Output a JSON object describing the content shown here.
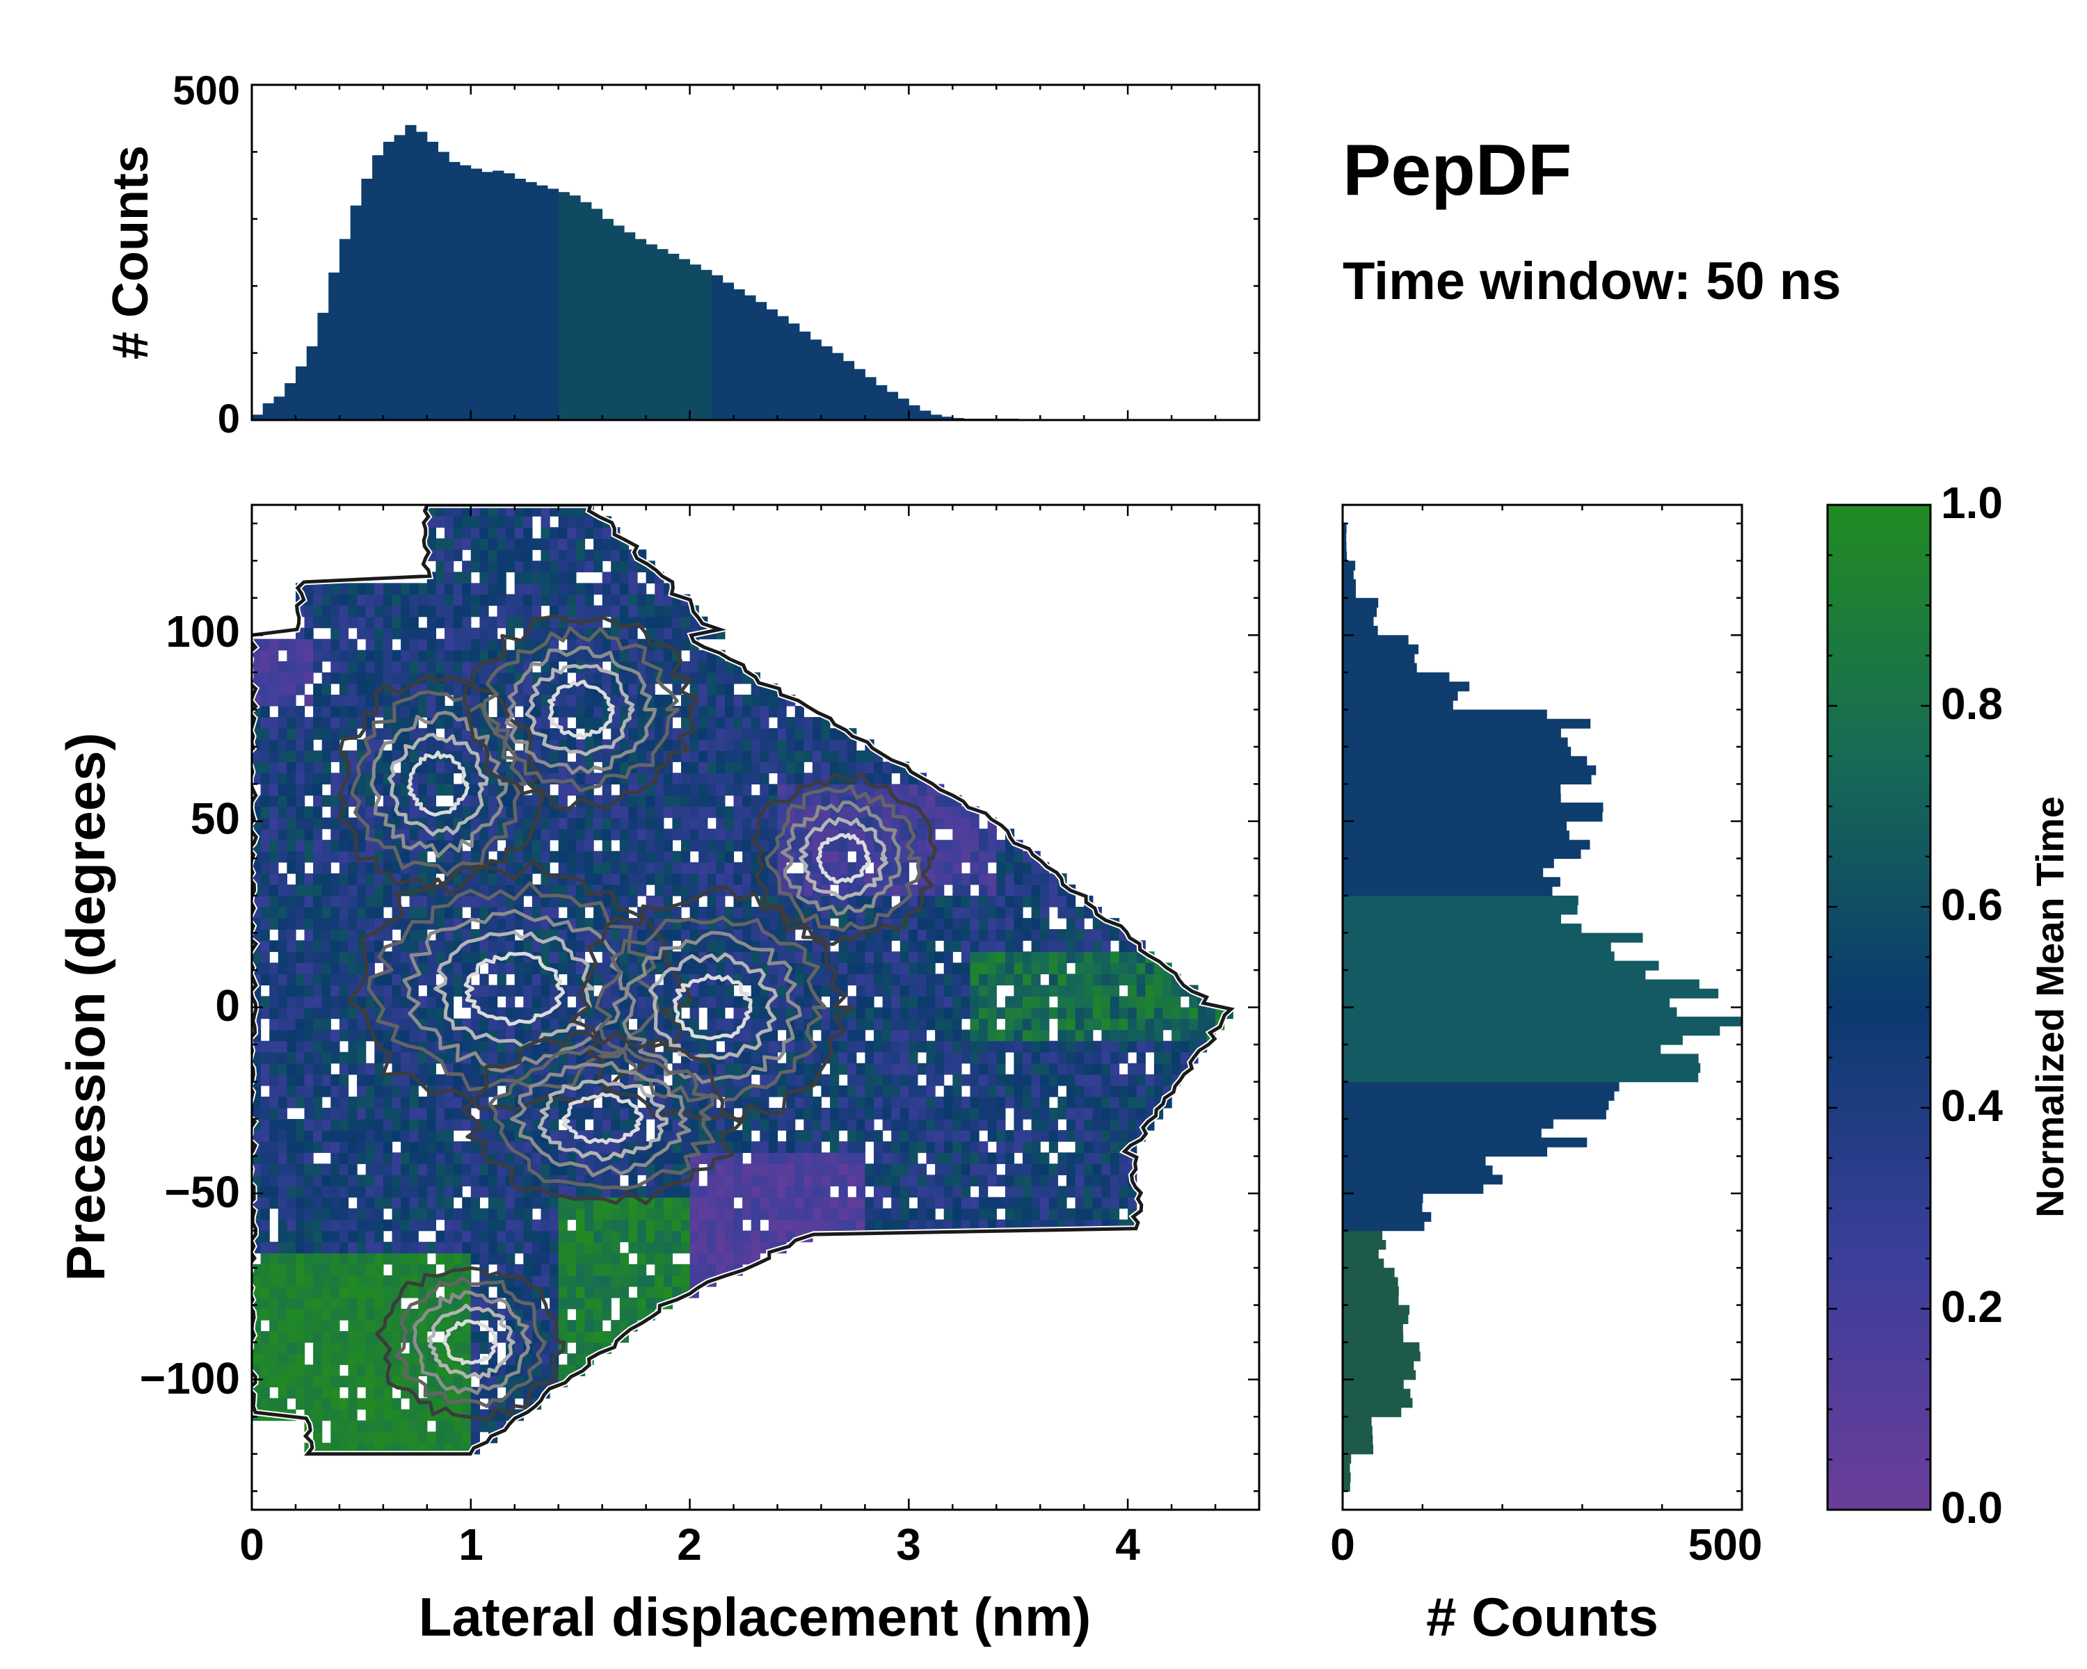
{
  "chart_data": [
    {
      "id": "top_hist",
      "type": "bar",
      "orientation": "vertical",
      "ylabel": "# Counts",
      "xlim": [
        0,
        4.6
      ],
      "ylim": [
        0,
        500
      ],
      "yticks": [
        0,
        500
      ],
      "bins_x": [
        0.025,
        0.075,
        0.125,
        0.175,
        0.225,
        0.275,
        0.325,
        0.375,
        0.425,
        0.475,
        0.525,
        0.575,
        0.625,
        0.675,
        0.725,
        0.775,
        0.825,
        0.875,
        0.925,
        0.975,
        1.025,
        1.075,
        1.125,
        1.175,
        1.225,
        1.275,
        1.325,
        1.375,
        1.425,
        1.475,
        1.525,
        1.575,
        1.625,
        1.675,
        1.725,
        1.775,
        1.825,
        1.875,
        1.925,
        1.975,
        2.025,
        2.075,
        2.125,
        2.175,
        2.225,
        2.275,
        2.325,
        2.375,
        2.425,
        2.475,
        2.525,
        2.575,
        2.625,
        2.675,
        2.725,
        2.775,
        2.825,
        2.875,
        2.925,
        2.975,
        3.025,
        3.075,
        3.125,
        3.175,
        3.225,
        3.275,
        3.325,
        3.375,
        3.425,
        3.475,
        3.525,
        3.575,
        3.625,
        3.675,
        3.725,
        3.775,
        3.825,
        3.875,
        3.925,
        3.975,
        4.025,
        4.075,
        4.125,
        4.175,
        4.225,
        4.275,
        4.325,
        4.375,
        4.425,
        4.475,
        4.525,
        4.575
      ],
      "counts": [
        8,
        25,
        35,
        55,
        80,
        110,
        160,
        220,
        270,
        320,
        360,
        395,
        415,
        425,
        440,
        430,
        415,
        400,
        385,
        380,
        375,
        370,
        372,
        368,
        360,
        355,
        350,
        345,
        340,
        335,
        325,
        315,
        300,
        290,
        280,
        270,
        262,
        255,
        248,
        240,
        232,
        224,
        216,
        205,
        195,
        186,
        176,
        165,
        155,
        144,
        132,
        120,
        110,
        100,
        88,
        76,
        64,
        52,
        42,
        32,
        22,
        14,
        8,
        5,
        3,
        2,
        2,
        2,
        2,
        2,
        1,
        1,
        1,
        1,
        1,
        1,
        1,
        1,
        1,
        1,
        1,
        1,
        1,
        1,
        1,
        1,
        1,
        1,
        1,
        1,
        1,
        1
      ]
    },
    {
      "id": "heatmap",
      "type": "heatmap",
      "xlabel": "Lateral displacement (nm)",
      "ylabel": "Precession (degrees)",
      "xlim": [
        0,
        4.6
      ],
      "ylim": [
        -135,
        135
      ],
      "xticks": [
        0,
        1,
        2,
        3,
        4
      ],
      "yticks": [
        -100,
        -50,
        0,
        50,
        100
      ],
      "ytick_labels": [
        "−100",
        "−50",
        "0",
        "50",
        "100"
      ],
      "color_metric": "Normalized Mean Time",
      "density_contours": true
    },
    {
      "id": "right_hist",
      "type": "bar",
      "orientation": "horizontal",
      "xlabel": "# Counts",
      "xlim": [
        0,
        500
      ],
      "xticks": [
        0,
        500
      ],
      "ylim": [
        -135,
        135
      ],
      "bins_y": [
        -125,
        -115,
        -105,
        -95,
        -85,
        -75,
        -65,
        -55,
        -45,
        -35,
        -25,
        -15,
        -5,
        5,
        15,
        25,
        35,
        45,
        55,
        65,
        75,
        85,
        95,
        105,
        115,
        125
      ],
      "counts": [
        10,
        40,
        80,
        95,
        85,
        70,
        50,
        100,
        180,
        280,
        350,
        400,
        460,
        430,
        360,
        280,
        250,
        280,
        300,
        320,
        280,
        150,
        90,
        40,
        15,
        5
      ]
    }
  ],
  "panel_title": "PepDF",
  "panel_subtitle": "Time window: 50 ns",
  "colorbar": {
    "label": "Normalized Mean Time",
    "range": [
      0,
      1
    ],
    "ticks": [
      "0.0",
      "0.2",
      "0.4",
      "0.6",
      "0.8",
      "1.0"
    ],
    "color_low": "#6a3d9a",
    "color_mid": "#0b3a6e",
    "color_high": "#228b22"
  },
  "colors": {
    "bar": "#0e3d6e",
    "contour_dark": "#1a1a1a",
    "contour_light": "#cfcfcf"
  }
}
